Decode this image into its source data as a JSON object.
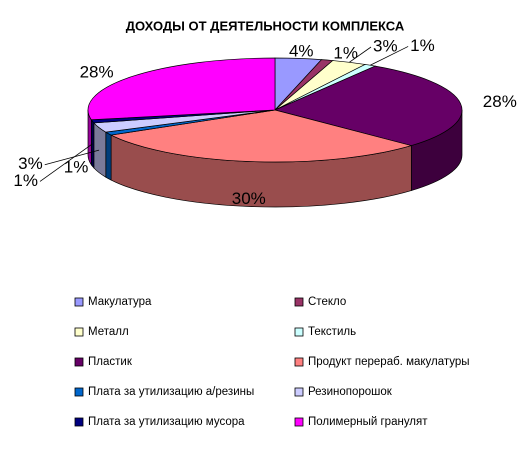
{
  "chart_data": {
    "type": "pie",
    "title": "ДОХОДЫ ОТ ДЕЯТЕЛЬНОСТИ КОМПЛЕКСА",
    "categories": [
      "Макулатура",
      "Стекло",
      "Металл",
      "Текстиль",
      "Пластик",
      "Продукт перераб. макулатуры",
      "Плата за утилизацию а/резины",
      "Резинопорошок",
      "Плата за утилизацию мусора",
      "Полимерный гранулят"
    ],
    "values": [
      4,
      1,
      3,
      1,
      28,
      30,
      1,
      3,
      1,
      28
    ],
    "value_labels": [
      "4%",
      "1%",
      "3%",
      "1%",
      "28%",
      "30%",
      "1%",
      "3%",
      "1%",
      "28%"
    ],
    "colors": [
      "#9999ff",
      "#993366",
      "#ffffcc",
      "#ccffff",
      "#660066",
      "#ff8080",
      "#0066cc",
      "#ccccff",
      "#000080",
      "#ff00ff"
    ],
    "legend": "bottom"
  }
}
